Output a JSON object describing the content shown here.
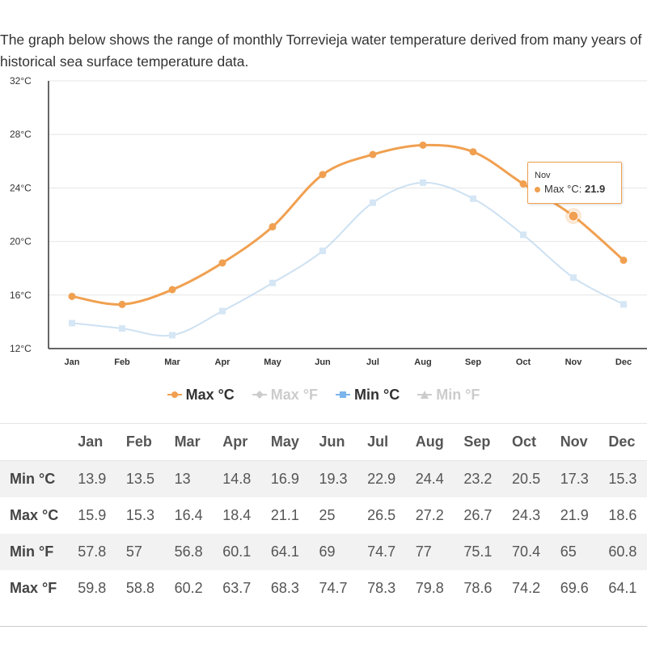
{
  "intro": "The graph below shows the range of monthly Torrevieja water temperature derived from many years of historical sea surface temperature data.",
  "colors": {
    "max_c": "#f0a050",
    "min_c": "#b8d4ec",
    "grid": "#e6e6e6",
    "axis": "#333333"
  },
  "chart_data": {
    "type": "line",
    "categories": [
      "Jan",
      "Feb",
      "Mar",
      "Apr",
      "May",
      "Jun",
      "Jul",
      "Aug",
      "Sep",
      "Oct",
      "Nov",
      "Dec"
    ],
    "ylim": [
      12,
      32
    ],
    "yticks": [
      12,
      16,
      20,
      24,
      28,
      32
    ],
    "ytick_labels": [
      "12°C",
      "16°C",
      "20°C",
      "24°C",
      "28°C",
      "32°C"
    ],
    "grid": true,
    "legend_position": "bottom-center",
    "series": [
      {
        "name": "Max °C",
        "values": [
          15.9,
          15.3,
          16.4,
          18.4,
          21.1,
          25,
          26.5,
          27.2,
          26.7,
          24.3,
          21.9,
          18.6
        ],
        "visible": true,
        "emphasis": "strong"
      },
      {
        "name": "Min °C",
        "values": [
          13.9,
          13.5,
          13,
          14.8,
          16.9,
          19.3,
          22.9,
          24.4,
          23.2,
          20.5,
          17.3,
          15.3
        ],
        "visible": true,
        "emphasis": "faded"
      }
    ],
    "legend": [
      {
        "label": "Max °C",
        "state": "on",
        "marker": "circle",
        "color": "#f0a050"
      },
      {
        "label": "Max °F",
        "state": "off",
        "marker": "diamond",
        "color": "#cccccc"
      },
      {
        "label": "Min °C",
        "state": "on",
        "marker": "square",
        "color": "#7cb5ec"
      },
      {
        "label": "Min °F",
        "state": "off",
        "marker": "triangle",
        "color": "#cccccc"
      }
    ],
    "tooltip": {
      "category": "Nov",
      "series_label": "Max °C: ",
      "value": "21.9"
    }
  },
  "table": {
    "headers": [
      "",
      "Jan",
      "Feb",
      "Mar",
      "Apr",
      "May",
      "Jun",
      "Jul",
      "Aug",
      "Sep",
      "Oct",
      "Nov",
      "Dec"
    ],
    "rows": [
      {
        "label": "Min °C",
        "values": [
          "13.9",
          "13.5",
          "13",
          "14.8",
          "16.9",
          "19.3",
          "22.9",
          "24.4",
          "23.2",
          "20.5",
          "17.3",
          "15.3"
        ]
      },
      {
        "label": "Max °C",
        "values": [
          "15.9",
          "15.3",
          "16.4",
          "18.4",
          "21.1",
          "25",
          "26.5",
          "27.2",
          "26.7",
          "24.3",
          "21.9",
          "18.6"
        ]
      },
      {
        "label": "Min °F",
        "values": [
          "57.8",
          "57",
          "56.8",
          "60.1",
          "64.1",
          "69",
          "74.7",
          "77",
          "75.1",
          "70.4",
          "65",
          "60.8"
        ]
      },
      {
        "label": "Max °F",
        "values": [
          "59.8",
          "58.8",
          "60.2",
          "63.7",
          "68.3",
          "74.7",
          "78.3",
          "79.8",
          "78.6",
          "74.2",
          "69.6",
          "64.1"
        ]
      }
    ]
  }
}
